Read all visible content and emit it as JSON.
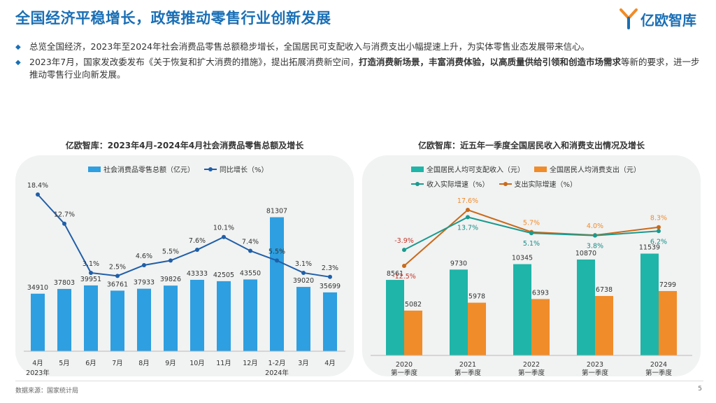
{
  "header": {
    "title": "全国经济平稳增长，政策推动零售行业创新发展",
    "logo_text": "亿欧智库"
  },
  "bullets": [
    {
      "text": "总览全国经济，2023年至2024年社会消费品零售总额稳步增长，全国居民可支配收入与消费支出小幅提速上升，为实体零售业态发展带来信心。"
    },
    {
      "pre": "2023年7月，国家发改委发布《关于恢复和扩大消费的措施》，提出拓展消费新空间，",
      "bold": "打造消费新场景，丰富消费体验，以高质量供给引领和创造市场需求",
      "post": "等新的要求，进一步推动零售行业向新发展。"
    }
  ],
  "footer": {
    "source": "数据来源：国家统计局",
    "page": "5"
  },
  "colors": {
    "blue_bar": "#2e9fe0",
    "blue_dark": "#1f5fa8",
    "teal": "#1fb5a8",
    "orange": "#f08c2a",
    "red_label": "#c0392b",
    "teal_label": "#148f86"
  },
  "chart_data": [
    {
      "type": "bar",
      "title": "亿欧智库：2023年4月-2024年4月社会消费品零售总额及增长",
      "categories": [
        "4月",
        "5月",
        "6月",
        "7月",
        "8月",
        "9月",
        "10月",
        "11月",
        "12月",
        "1-2月",
        "3月",
        "4月"
      ],
      "year_labels": {
        "first": "2023年",
        "tenth": "2024年"
      },
      "series": [
        {
          "name": "社会消费品零售总额（亿元）",
          "kind": "bar",
          "values": [
            34910,
            37803,
            39951,
            36761,
            37933,
            39826,
            43333,
            42505,
            43550,
            81307,
            39020,
            35699
          ]
        },
        {
          "name": "同比增长（%）",
          "kind": "line",
          "values": [
            18.4,
            12.7,
            3.1,
            2.5,
            4.6,
            5.5,
            7.6,
            10.1,
            7.4,
            5.5,
            3.1,
            2.3
          ],
          "labels": [
            "18.4%",
            "12.7%",
            "3.1%",
            "2.5%",
            "4.6%",
            "5.5%",
            "7.6%",
            "10.1%",
            "7.4%",
            "5.5%",
            "3.1%",
            "2.3%"
          ]
        }
      ],
      "bar_ylim": [
        0,
        90000
      ],
      "line_ylim": [
        -14,
        22
      ]
    },
    {
      "type": "bar",
      "title": "亿欧智库：近五年一季度全国居民收入和消费支出情况及增长",
      "categories": [
        "2020",
        "2021",
        "2022",
        "2023",
        "2024"
      ],
      "sublabel": "第一季度",
      "series": [
        {
          "name": "全国居民人均可支配收入（元）",
          "kind": "bar",
          "values": [
            8561,
            9730,
            10345,
            10870,
            11539
          ]
        },
        {
          "name": "全国居民人均消费支出（元）",
          "kind": "bar",
          "values": [
            5082,
            5978,
            6393,
            6738,
            7299
          ]
        },
        {
          "name": "收入实际增速（%）",
          "kind": "line",
          "values": [
            -3.9,
            13.7,
            5.1,
            3.8,
            6.2
          ],
          "labels": [
            "-3.9%",
            "13.7%",
            "5.1%",
            "3.8%",
            "6.2%"
          ]
        },
        {
          "name": "支出实际增速（%）",
          "kind": "line",
          "values": [
            -12.5,
            17.6,
            5.7,
            4.0,
            8.3
          ],
          "labels": [
            "-12.5%",
            "17.6%",
            "5.7%",
            "4.0%",
            "8.3%"
          ]
        }
      ],
      "bar_ylim": [
        0,
        27000
      ],
      "line_ylim": [
        -16,
        22
      ]
    }
  ]
}
